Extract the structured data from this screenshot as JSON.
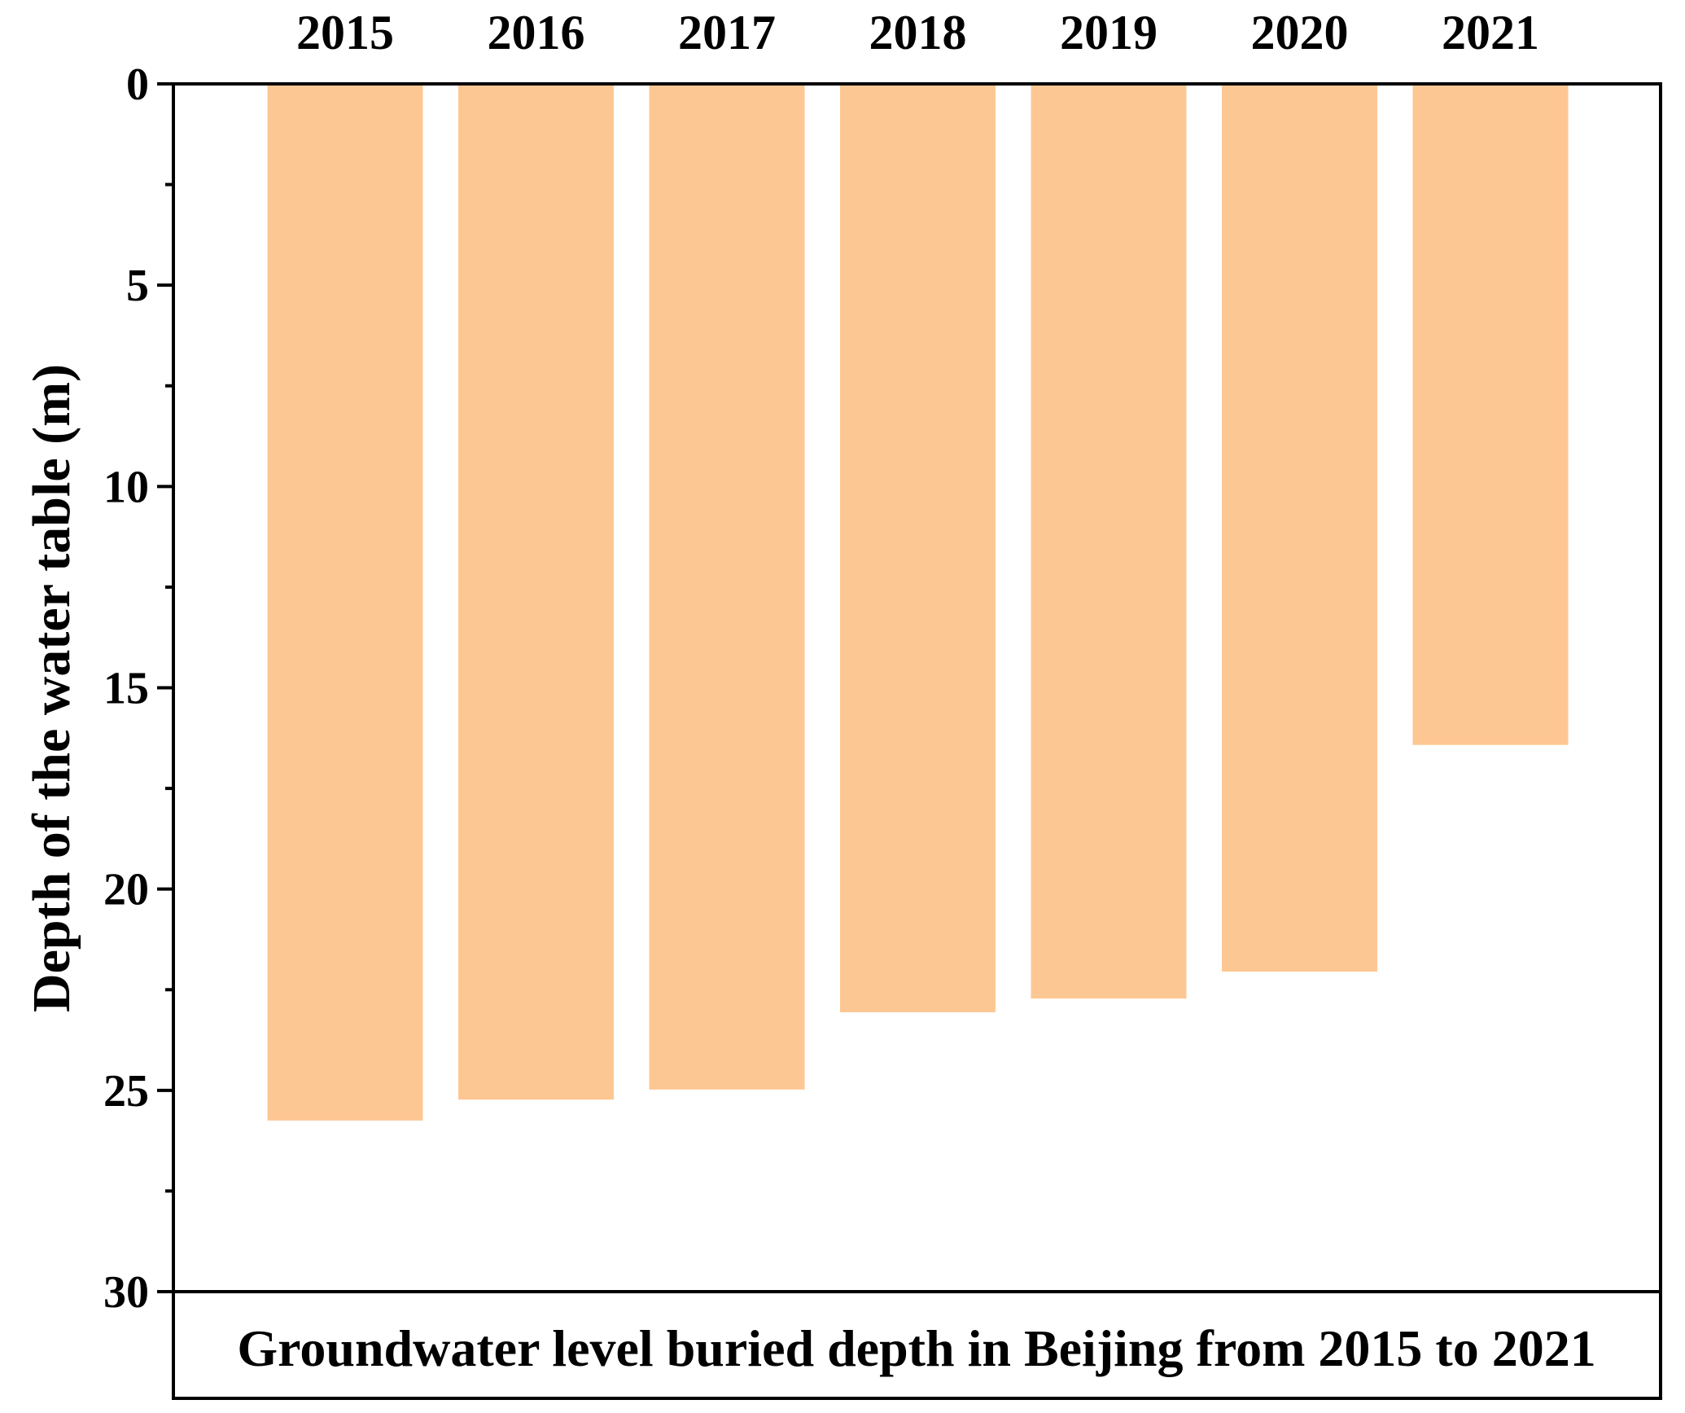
{
  "chart_data": {
    "type": "bar",
    "orientation": "vertical-hanging",
    "categories": [
      "2015",
      "2016",
      "2017",
      "2018",
      "2019",
      "2020",
      "2021"
    ],
    "values": [
      25.75,
      25.23,
      24.98,
      23.06,
      22.72,
      22.05,
      16.42
    ],
    "ylabel": "Depth of the water table (m)",
    "ylim": [
      0,
      30
    ],
    "y_inverted": true,
    "yticks": [
      0,
      5,
      10,
      15,
      20,
      25,
      30
    ],
    "x_axis_position": "top",
    "grid": false,
    "legend": "none",
    "bar_color": "#FDC793",
    "caption": "Groundwater level buried depth in Beijing from 2015 to 2021"
  }
}
